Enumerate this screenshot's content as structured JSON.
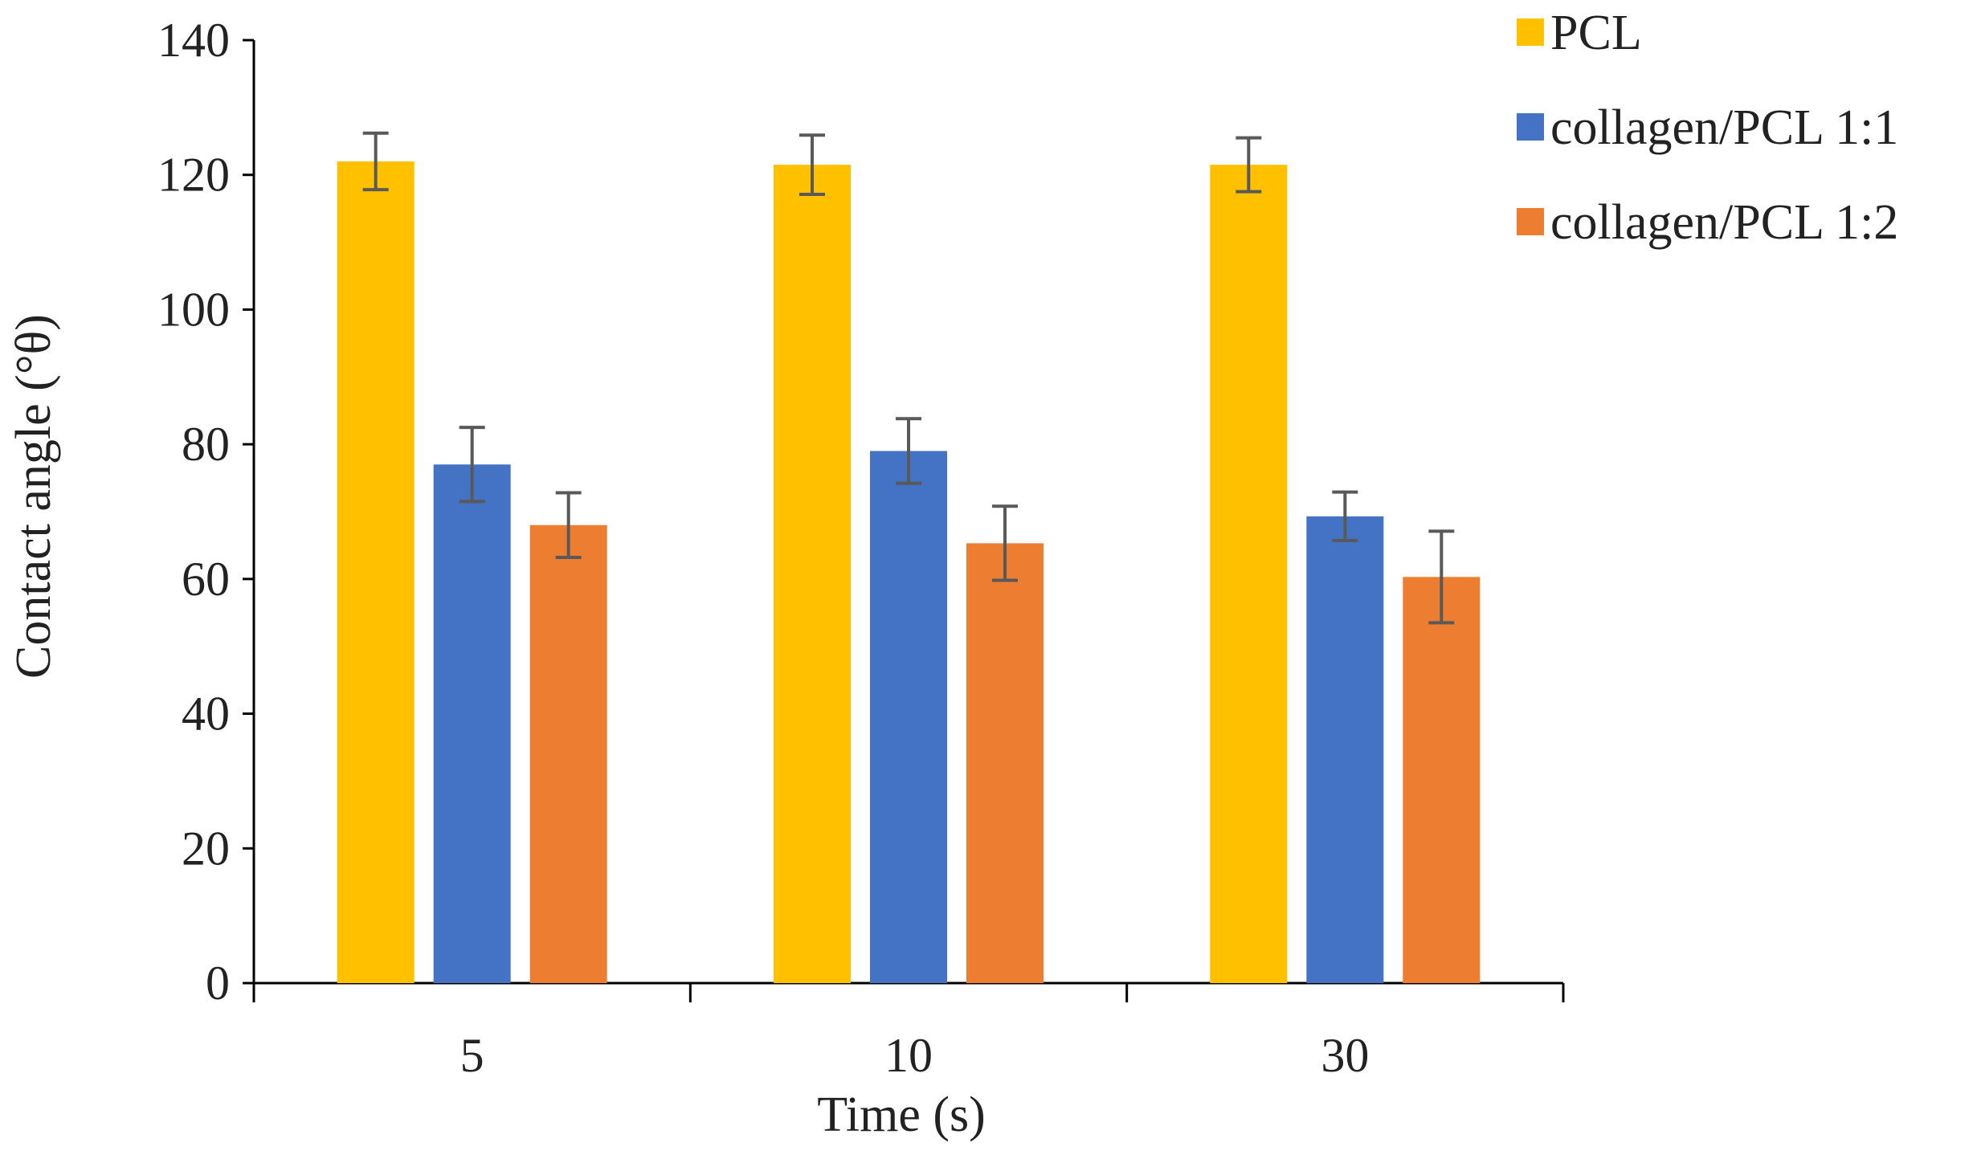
{
  "chart_data": {
    "type": "bar",
    "title": "",
    "xlabel": "Time (s)",
    "ylabel": "Contact angle (°θ)",
    "categories": [
      "5",
      "10",
      "30"
    ],
    "ylim": [
      0,
      140
    ],
    "yticks": [
      0,
      20,
      40,
      60,
      80,
      100,
      120,
      140
    ],
    "grid": false,
    "legend_position": "top-right",
    "series": [
      {
        "name": "PCL",
        "color": "#FFC000",
        "values": [
          122,
          121.5,
          121.5
        ],
        "errors": [
          4.2,
          4.4,
          4.0
        ]
      },
      {
        "name": "collagen/PCL 1:1",
        "color": "#4472C4",
        "values": [
          77,
          79,
          69.3
        ],
        "errors": [
          5.5,
          4.8,
          3.6
        ]
      },
      {
        "name": "collagen/PCL 1:2",
        "color": "#ED7D31",
        "values": [
          68,
          65.3,
          60.3
        ],
        "errors": [
          4.8,
          5.5,
          6.8
        ]
      }
    ],
    "error_bar_color": "#595959",
    "axis_color": "#000000"
  }
}
